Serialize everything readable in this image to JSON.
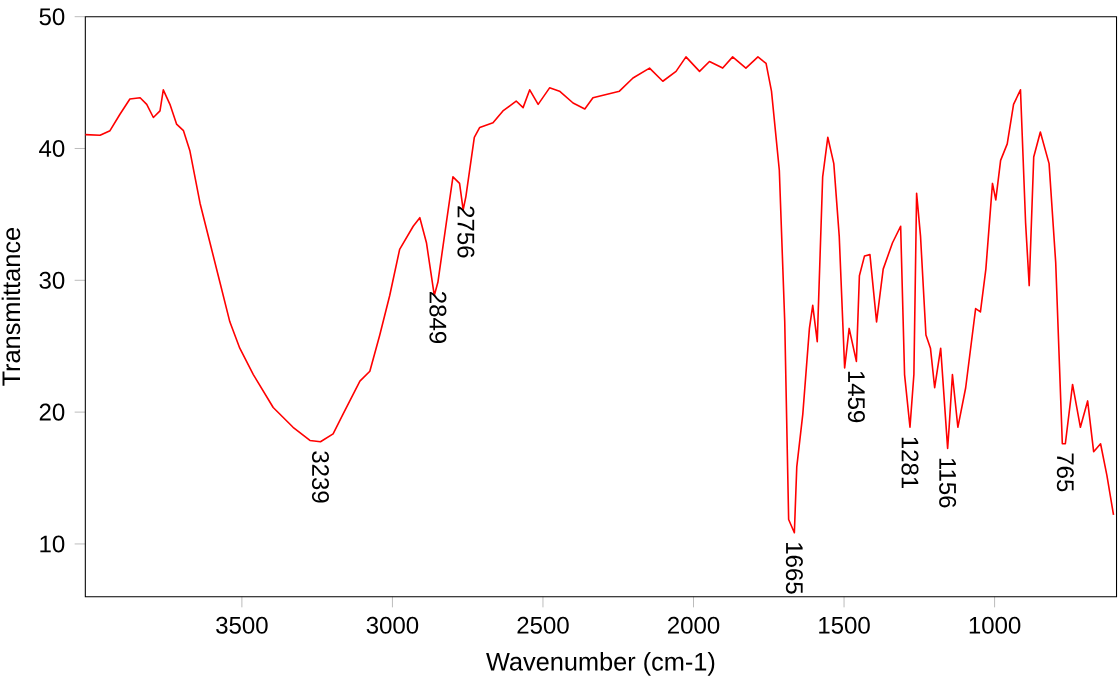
{
  "chart_data": {
    "type": "line",
    "xlabel": "Wavenumber (cm-1)",
    "ylabel": "Transmittance",
    "xlim": [
      4020,
      595
    ],
    "ylim": [
      6,
      50
    ],
    "xticks": [
      3500,
      3000,
      2500,
      2000,
      1500,
      1000
    ],
    "yticks": [
      10,
      20,
      30,
      40,
      50
    ],
    "grid": false,
    "marker": "none",
    "line_style": "solid",
    "series": [
      {
        "color": "#ff0000",
        "x": [
          4020,
          3971,
          3938,
          3905,
          3872,
          3838,
          3816,
          3794,
          3772,
          3761,
          3739,
          3717,
          3694,
          3673,
          3639,
          3606,
          3573,
          3540,
          3507,
          3462,
          3396,
          3330,
          3274,
          3239,
          3197,
          3164,
          3108,
          3075,
          3042,
          3009,
          2976,
          2931,
          2909,
          2887,
          2861,
          2849,
          2821,
          2799,
          2777,
          2765,
          2756,
          2728,
          2710,
          2666,
          2633,
          2589,
          2566,
          2544,
          2516,
          2478,
          2445,
          2400,
          2361,
          2334,
          2290,
          2246,
          2201,
          2146,
          2102,
          2058,
          2025,
          1980,
          1947,
          1903,
          1870,
          1826,
          1786,
          1759,
          1741,
          1715,
          1697,
          1684,
          1665,
          1657,
          1637,
          1615,
          1604,
          1589,
          1571,
          1554,
          1534,
          1516,
          1498,
          1483,
          1459,
          1449,
          1432,
          1414,
          1392,
          1370,
          1339,
          1312,
          1299,
          1281,
          1268,
          1259,
          1246,
          1228,
          1213,
          1199,
          1179,
          1156,
          1151,
          1140,
          1122,
          1096,
          1063,
          1047,
          1029,
          1007,
          996,
          980,
          958,
          937,
          914,
          897,
          885,
          870,
          848,
          819,
          797,
          775,
          765,
          741,
          715,
          691,
          671,
          648,
          627,
          605
        ],
        "values": [
          41.05,
          41.0,
          41.35,
          42.6,
          43.75,
          43.85,
          43.35,
          42.35,
          42.85,
          44.45,
          43.35,
          41.85,
          41.35,
          39.85,
          35.85,
          32.85,
          29.85,
          26.85,
          24.85,
          22.85,
          20.35,
          18.85,
          17.85,
          17.75,
          18.35,
          19.85,
          22.35,
          23.1,
          25.85,
          28.85,
          32.35,
          34.1,
          34.75,
          32.85,
          28.85,
          29.85,
          34.35,
          37.85,
          37.35,
          35.35,
          36.35,
          40.85,
          41.6,
          41.95,
          42.85,
          43.6,
          43.1,
          44.45,
          43.35,
          44.6,
          44.35,
          43.45,
          43.0,
          43.85,
          44.1,
          44.35,
          45.35,
          46.1,
          45.1,
          45.85,
          46.95,
          45.85,
          46.6,
          46.1,
          46.95,
          46.1,
          46.95,
          46.45,
          44.35,
          38.35,
          26.85,
          11.85,
          10.85,
          15.85,
          19.85,
          26.35,
          28.1,
          25.35,
          37.85,
          40.85,
          38.85,
          33.35,
          23.35,
          26.35,
          23.85,
          30.35,
          31.85,
          31.95,
          26.85,
          30.85,
          32.85,
          34.1,
          22.85,
          18.85,
          22.85,
          36.6,
          33.35,
          25.85,
          24.85,
          21.85,
          24.85,
          17.25,
          18.85,
          22.85,
          18.85,
          21.85,
          27.85,
          27.6,
          30.85,
          37.35,
          36.1,
          39.1,
          40.35,
          43.35,
          44.45,
          34.35,
          29.6,
          39.35,
          41.25,
          38.85,
          31.35,
          17.6,
          17.6,
          22.1,
          18.85,
          20.85,
          17.0,
          17.6,
          15.2,
          12.2
        ]
      }
    ],
    "annotations": [
      {
        "text": "3239",
        "x": 3239,
        "y": 17.75
      },
      {
        "text": "2849",
        "x": 2849,
        "y": 29.85
      },
      {
        "text": "2756",
        "x": 2756,
        "y": 36.35
      },
      {
        "text": "1665",
        "x": 1665,
        "y": 10.85
      },
      {
        "text": "1459",
        "x": 1459,
        "y": 23.85
      },
      {
        "text": "1281",
        "x": 1281,
        "y": 18.85
      },
      {
        "text": "1156",
        "x": 1156,
        "y": 17.25
      },
      {
        "text": "765",
        "x": 765,
        "y": 17.6
      }
    ]
  }
}
